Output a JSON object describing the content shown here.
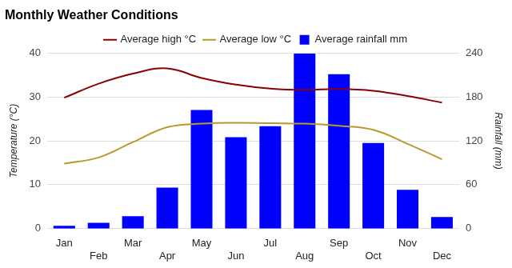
{
  "chart_data": {
    "type": "bar",
    "title": "Monthly Weather Conditions",
    "y_label": "Temperature (°C)",
    "y2_label": "Rainfall (mm)",
    "categories": [
      "Jan",
      "Feb",
      "Mar",
      "Apr",
      "May",
      "Jun",
      "Jul",
      "Aug",
      "Sep",
      "Oct",
      "Nov",
      "Dec"
    ],
    "series": [
      {
        "name": "Average high °C",
        "type": "line",
        "color": "#8b0000",
        "values": [
          29.8,
          33.0,
          35.3,
          36.5,
          34.3,
          32.8,
          31.9,
          31.6,
          31.8,
          31.4,
          30.2,
          28.7
        ]
      },
      {
        "name": "Average low °C",
        "type": "line",
        "color": "#b89a2c",
        "values": [
          14.8,
          16.2,
          19.7,
          23.1,
          23.9,
          24.1,
          24.0,
          23.9,
          23.4,
          22.5,
          19.3,
          15.8
        ]
      },
      {
        "name": "Average rainfall mm",
        "type": "bar",
        "color": "#0000ff",
        "axis": "y2",
        "values": [
          4,
          8,
          17,
          56,
          162,
          125,
          140,
          239,
          211,
          117,
          53,
          16
        ]
      }
    ],
    "ylim": [
      0,
      40
    ],
    "yticks": [
      0,
      10,
      20,
      30,
      40
    ],
    "y2lim": [
      0,
      240
    ],
    "y2ticks": [
      0,
      60,
      120,
      180,
      240
    ],
    "grid": true,
    "legend": "top"
  }
}
